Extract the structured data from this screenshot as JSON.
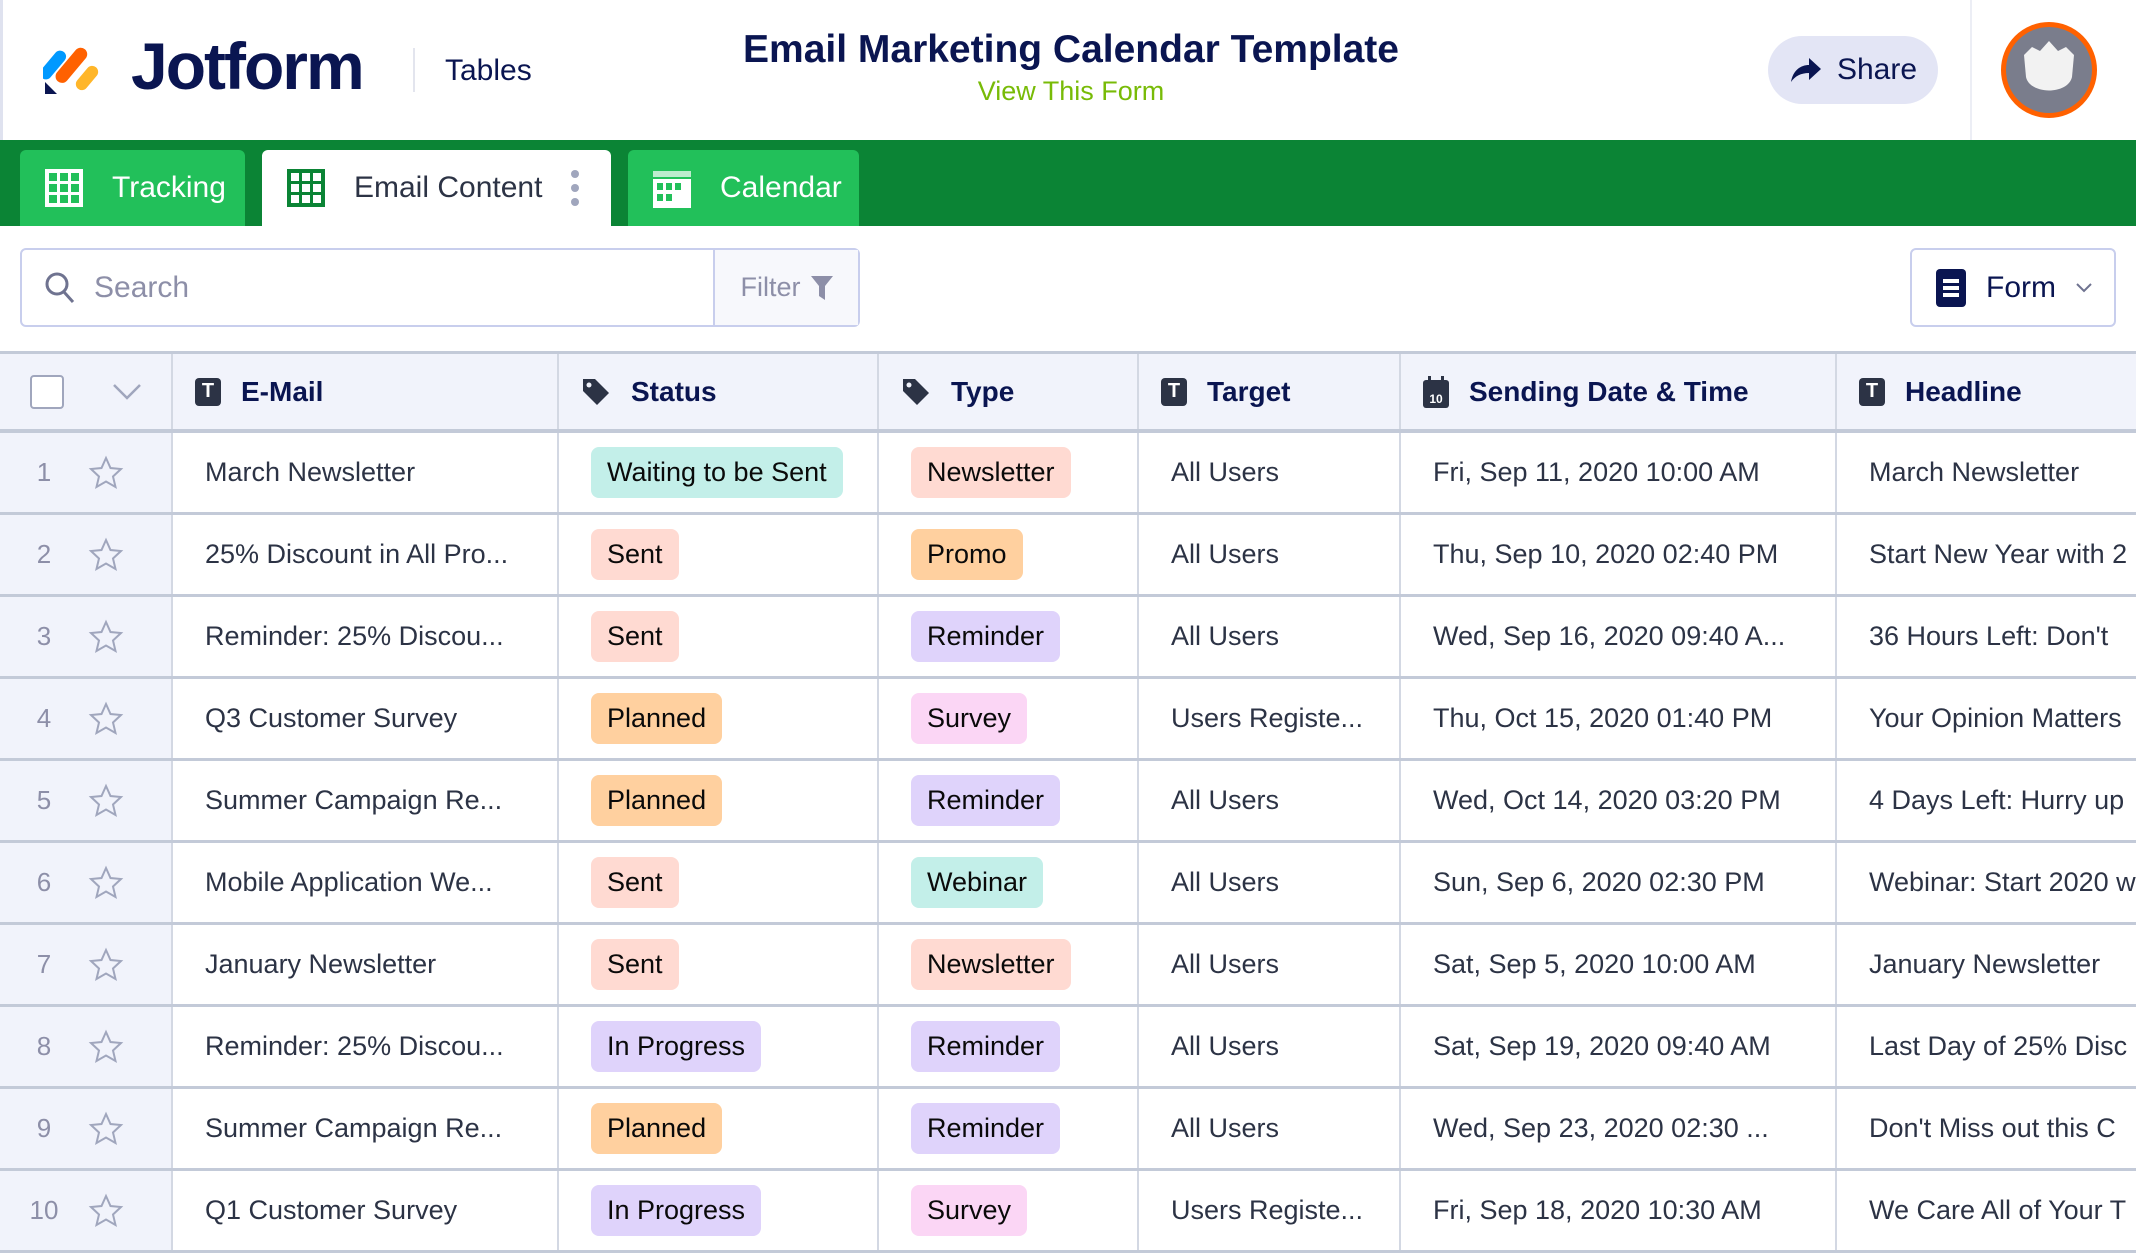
{
  "header": {
    "brand": "Jotform",
    "product": "Tables",
    "title": "Email Marketing Calendar Template",
    "subtitle_link": "View This Form",
    "share_label": "Share"
  },
  "tabs": [
    {
      "label": "Tracking",
      "icon": "grid-icon"
    },
    {
      "label": "Email Content",
      "icon": "grid-icon",
      "active": true
    },
    {
      "label": "Calendar",
      "icon": "calendar-icon"
    }
  ],
  "toolbar": {
    "search_placeholder": "Search",
    "filter_label": "Filter",
    "form_label": "Form"
  },
  "columns": [
    "E-Mail",
    "Status",
    "Type",
    "Target",
    "Sending Date & Time",
    "Headline"
  ],
  "colors": {
    "green_bar": "#0b8435",
    "tab_green": "#22c05a",
    "navy": "#0a1551",
    "link_green": "#78bb07",
    "avatar_ring": "#ff6100"
  },
  "badge_colors": {
    "Waiting to be Sent": "#c3efe9",
    "Sent": "#ffdad2",
    "Planned": "#ffd09f",
    "In Progress": "#dfd3fb",
    "Newsletter": "#ffdad2",
    "Promo": "#ffd09f",
    "Reminder": "#dfd3fb",
    "Survey": "#fbd6f5",
    "Webinar": "#c3efe9"
  },
  "rows": [
    {
      "n": "1",
      "email": "March Newsletter",
      "status": "Waiting to be Sent",
      "type": "Newsletter",
      "target": "All Users",
      "date": "Fri, Sep 11, 2020 10:00 AM",
      "headline": "March Newsletter"
    },
    {
      "n": "2",
      "email": "25% Discount in All Pro...",
      "status": "Sent",
      "type": "Promo",
      "target": "All Users",
      "date": "Thu, Sep 10, 2020 02:40 PM",
      "headline": "Start New Year with 2"
    },
    {
      "n": "3",
      "email": "Reminder: 25% Discou...",
      "status": "Sent",
      "type": "Reminder",
      "target": "All Users",
      "date": "Wed, Sep 16, 2020 09:40 A...",
      "headline": "36 Hours Left: Don't"
    },
    {
      "n": "4",
      "email": "Q3 Customer Survey",
      "status": "Planned",
      "type": "Survey",
      "target": "Users Registe...",
      "date": "Thu, Oct 15, 2020 01:40 PM",
      "headline": "Your Opinion Matters"
    },
    {
      "n": "5",
      "email": "Summer Campaign Re...",
      "status": "Planned",
      "type": "Reminder",
      "target": "All Users",
      "date": "Wed, Oct 14, 2020 03:20 PM",
      "headline": "4 Days Left: Hurry up"
    },
    {
      "n": "6",
      "email": "Mobile Application We...",
      "status": "Sent",
      "type": "Webinar",
      "target": "All Users",
      "date": "Sun, Sep 6, 2020 02:30 PM",
      "headline": "Webinar: Start 2020 w"
    },
    {
      "n": "7",
      "email": "January Newsletter",
      "status": "Sent",
      "type": "Newsletter",
      "target": "All Users",
      "date": "Sat, Sep 5, 2020 10:00 AM",
      "headline": "January Newsletter"
    },
    {
      "n": "8",
      "email": "Reminder: 25% Discou...",
      "status": "In Progress",
      "type": "Reminder",
      "target": "All Users",
      "date": "Sat, Sep 19, 2020 09:40 AM",
      "headline": "Last Day of 25% Disc"
    },
    {
      "n": "9",
      "email": "Summer Campaign Re...",
      "status": "Planned",
      "type": "Reminder",
      "target": "All Users",
      "date": "Wed, Sep 23, 2020 02:30 ...",
      "headline": "Don't Miss out this C"
    },
    {
      "n": "10",
      "email": "Q1 Customer Survey",
      "status": "In Progress",
      "type": "Survey",
      "target": "Users Registe...",
      "date": "Fri, Sep 18, 2020 10:30 AM",
      "headline": "We Care All of Your T"
    }
  ]
}
